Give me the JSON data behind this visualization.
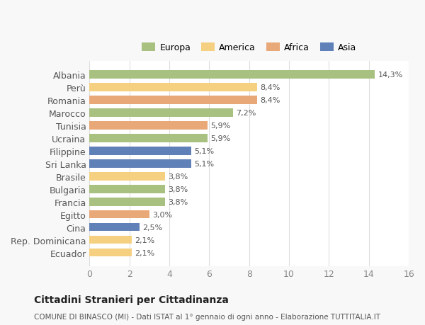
{
  "categories": [
    "Albania",
    "Perù",
    "Romania",
    "Marocco",
    "Tunisia",
    "Ucraina",
    "Filippine",
    "Sri Lanka",
    "Brasile",
    "Bulgaria",
    "Francia",
    "Egitto",
    "Cina",
    "Rep. Dominicana",
    "Ecuador"
  ],
  "values": [
    14.3,
    8.4,
    8.4,
    7.2,
    5.9,
    5.9,
    5.1,
    5.1,
    3.8,
    3.8,
    3.8,
    3.0,
    2.5,
    2.1,
    2.1
  ],
  "labels": [
    "14,3%",
    "8,4%",
    "8,4%",
    "7,2%",
    "5,9%",
    "5,9%",
    "5,1%",
    "5,1%",
    "3,8%",
    "3,8%",
    "3,8%",
    "3,0%",
    "2,5%",
    "2,1%",
    "2,1%"
  ],
  "colors": [
    "#a8c080",
    "#f5d080",
    "#e8a878",
    "#a8c080",
    "#e8a878",
    "#a8c080",
    "#6080b8",
    "#6080b8",
    "#f5d080",
    "#a8c080",
    "#a8c080",
    "#e8a878",
    "#6080b8",
    "#f5d080",
    "#f5d080"
  ],
  "legend_labels": [
    "Europa",
    "America",
    "Africa",
    "Asia"
  ],
  "legend_colors": [
    "#a8c080",
    "#f5d080",
    "#e8a878",
    "#6080b8"
  ],
  "title": "Cittadini Stranieri per Cittadinanza",
  "subtitle": "COMUNE DI BINASCO (MI) - Dati ISTAT al 1° gennaio di ogni anno - Elaborazione TUTTITALIA.IT",
  "xlim": [
    0,
    16
  ],
  "xticks": [
    0,
    2,
    4,
    6,
    8,
    10,
    12,
    14,
    16
  ],
  "background_color": "#f8f8f8",
  "bar_background": "#ffffff",
  "grid_color": "#dddddd"
}
